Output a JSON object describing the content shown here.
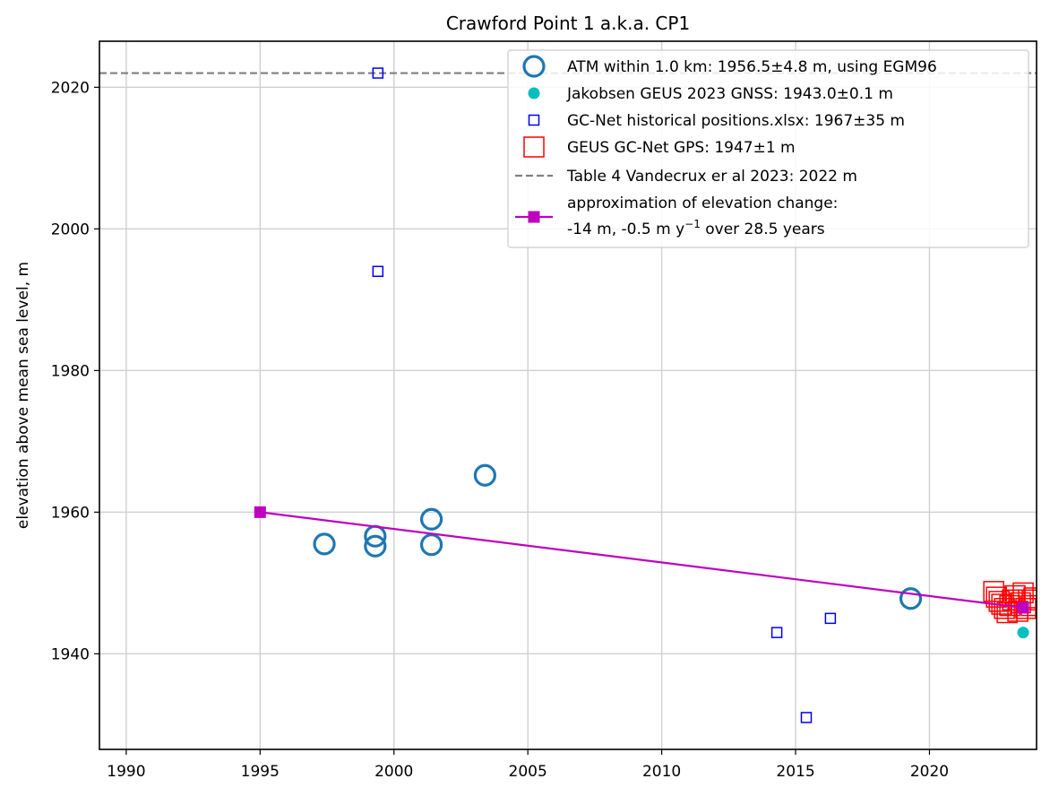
{
  "chart_data": {
    "type": "scatter",
    "title": "Crawford Point 1 a.k.a. CP1",
    "xlabel": "",
    "ylabel": "elevation above mean sea level, m",
    "xlim": [
      1989,
      2024
    ],
    "ylim": [
      1926.5,
      2026.5
    ],
    "xticks": [
      1990,
      1995,
      2000,
      2005,
      2010,
      2015,
      2020
    ],
    "yticks": [
      1940,
      1960,
      1980,
      2000,
      2020
    ],
    "grid": true,
    "legend_position": "top-right",
    "series": [
      {
        "name": "ATM within 1.0 km: 1956.5±4.8 m, using EGM96",
        "marker": "open-circle",
        "color": "#1f77b4",
        "points": [
          [
            1997.4,
            1955.5
          ],
          [
            1999.3,
            1956.6
          ],
          [
            1999.3,
            1955.2
          ],
          [
            2001.4,
            1959.0
          ],
          [
            2001.4,
            1955.4
          ],
          [
            2003.4,
            1965.2
          ],
          [
            2019.3,
            1947.8
          ]
        ]
      },
      {
        "name": "Jakobsen GEUS 2023 GNSS: 1943.0±0.1 m",
        "marker": "filled-circle",
        "color": "#00bfbf",
        "points": [
          [
            2023.5,
            1943.0
          ]
        ]
      },
      {
        "name": "GC-Net historical positions.xlsx: 1967±35 m",
        "marker": "small-open-square",
        "color": "#0000ff",
        "points": [
          [
            1999.4,
            2022.0
          ],
          [
            1999.4,
            1994.0
          ],
          [
            2014.3,
            1943.0
          ],
          [
            2015.4,
            1931.0
          ],
          [
            2016.3,
            1945.0
          ]
        ]
      },
      {
        "name": "GEUS GC-Net GPS: 1947±1 m",
        "marker": "large-open-square",
        "color": "#ff0000",
        "points": [
          [
            2022.4,
            1948.8
          ],
          [
            2022.5,
            1948.0
          ],
          [
            2022.6,
            1947.4
          ],
          [
            2022.7,
            1947.0
          ],
          [
            2022.8,
            1946.4
          ],
          [
            2022.9,
            1945.8
          ],
          [
            2023.0,
            1946.8
          ],
          [
            2023.1,
            1947.6
          ],
          [
            2023.2,
            1948.2
          ],
          [
            2023.3,
            1946.0
          ],
          [
            2023.4,
            1947.2
          ],
          [
            2023.5,
            1948.6
          ],
          [
            2023.6,
            1946.4
          ],
          [
            2023.7,
            1947.6
          ],
          [
            2023.8,
            1946.8
          ],
          [
            2023.9,
            1947.9
          ]
        ]
      },
      {
        "name": "Table 4 Vandecrux er al 2023: 2022 m",
        "marker": "dashed-line",
        "color": "#808080",
        "value": 2022
      },
      {
        "name": "approximation of elevation change:",
        "name_line2": "-14 m, -0.5 m y",
        "name_sup": "−1",
        "name_line2_end": " over 28.5 years",
        "marker": "line-square",
        "color": "#bf00bf",
        "points": [
          [
            1995.0,
            1960.0
          ],
          [
            2023.5,
            1946.5
          ]
        ]
      }
    ]
  }
}
